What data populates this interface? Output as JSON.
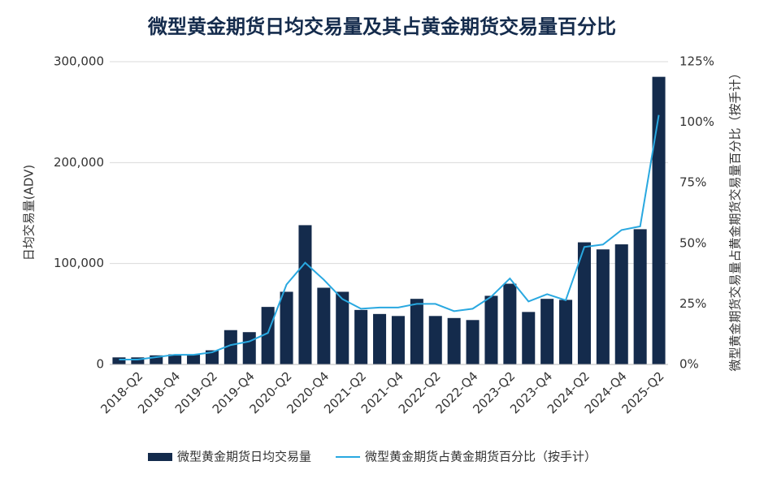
{
  "chart_data": {
    "type": "bar",
    "title": "微型黄金期货日均交易量及其占黄金期货交易量百分比",
    "y_label": "日均交易量(ADV)",
    "y2_label": "微型黄金期货交易量占黄金期货交易量百分比（按手计）",
    "categories": [
      null,
      "2018-Q2",
      null,
      "2018-Q4",
      null,
      "2019-Q2",
      null,
      "2019-Q4",
      null,
      "2020-Q2",
      null,
      "2020-Q4",
      null,
      "2021-Q2",
      null,
      "2021-Q4",
      null,
      "2022-Q2",
      null,
      "2022-Q4",
      null,
      "2023-Q2",
      null,
      "2023-Q4",
      null,
      "2024-Q2",
      null,
      "2024-Q4",
      null,
      "2025-Q2"
    ],
    "series": [
      {
        "name": "微型黄金期货日均交易量",
        "type": "bar",
        "color": "#142b4c",
        "values": [
          7000,
          7000,
          9000,
          10000,
          10000,
          14000,
          34000,
          32000,
          57000,
          72000,
          138000,
          76000,
          72000,
          54000,
          50000,
          48000,
          65000,
          48000,
          46000,
          44000,
          68000,
          80000,
          52000,
          65000,
          64000,
          121000,
          114000,
          119000,
          134000,
          285000
        ]
      },
      {
        "name": "微型黄金期货占黄金期货百分比（按手计）",
        "type": "line",
        "axis": "y2",
        "color": "#29a8e0",
        "values": [
          2,
          2,
          3,
          4,
          4,
          5,
          8,
          9.5,
          13,
          33,
          42,
          35,
          27,
          23,
          23.5,
          23.5,
          25,
          25,
          22,
          23,
          28,
          35.5,
          26,
          29,
          26.5,
          48.5,
          49.5,
          55.5,
          57,
          103
        ]
      }
    ],
    "ylim": [
      0,
      300000
    ],
    "yticks": [
      0,
      {
        "value": 100000,
        "label": "100,000"
      },
      {
        "value": 200000,
        "label": "200,000"
      },
      {
        "value": 300000,
        "label": "300,000"
      }
    ],
    "y2lim": [
      0,
      125
    ],
    "y2ticks": [
      {
        "value": 0,
        "label": "0%"
      },
      {
        "value": 25,
        "label": "25%"
      },
      {
        "value": 50,
        "label": "50%"
      },
      {
        "value": 75,
        "label": "75%"
      },
      {
        "value": 100,
        "label": "100%"
      },
      {
        "value": 125,
        "label": "125%"
      }
    ],
    "grid": true,
    "legend": "bottom"
  }
}
